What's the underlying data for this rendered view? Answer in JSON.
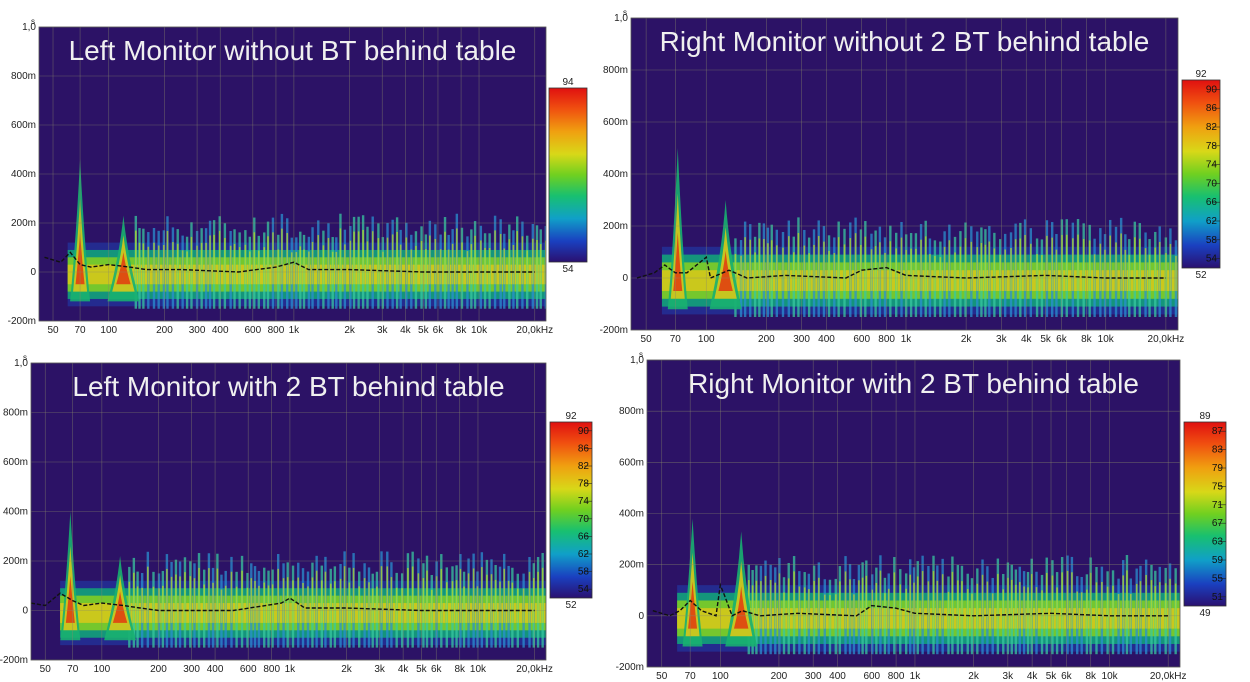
{
  "chart_data": [
    {
      "type": "heatmap",
      "title": "Left Monitor without BT behind table",
      "ylabel": "s",
      "xlabel": "",
      "x_scale": "log",
      "xlim": [
        42,
        23000
      ],
      "ylim": [
        -0.2,
        1.0
      ],
      "x_ticks": [
        {
          "value": 50,
          "label": "50"
        },
        {
          "value": 70,
          "label": "70"
        },
        {
          "value": 100,
          "label": "100"
        },
        {
          "value": 200,
          "label": "200"
        },
        {
          "value": 300,
          "label": "300"
        },
        {
          "value": 400,
          "label": "400"
        },
        {
          "value": 600,
          "label": "600"
        },
        {
          "value": 800,
          "label": "800"
        },
        {
          "value": 1000,
          "label": "1k"
        },
        {
          "value": 2000,
          "label": "2k"
        },
        {
          "value": 3000,
          "label": "3k"
        },
        {
          "value": 4000,
          "label": "4k"
        },
        {
          "value": 5000,
          "label": "5k"
        },
        {
          "value": 6000,
          "label": "6k"
        },
        {
          "value": 8000,
          "label": "8k"
        },
        {
          "value": 10000,
          "label": "10k"
        },
        {
          "value": 20000,
          "label": "20,0kHz"
        }
      ],
      "y_ticks": [
        {
          "value": 1.0,
          "label": "1,0"
        },
        {
          "value": 0.8,
          "label": "800m"
        },
        {
          "value": 0.6,
          "label": "600m"
        },
        {
          "value": 0.4,
          "label": "400m"
        },
        {
          "value": 0.2,
          "label": "200m"
        },
        {
          "value": 0.0,
          "label": "0"
        },
        {
          "value": -0.2,
          "label": "-200m"
        }
      ],
      "color_scale": {
        "top_label": "94",
        "labels": [],
        "bottom_label": "54"
      },
      "decay_ridge": {
        "x": [
          45,
          55,
          62,
          70,
          80,
          100,
          130,
          160,
          250,
          500,
          800,
          1000,
          1200,
          2000,
          5000,
          10000,
          20000
        ],
        "y": [
          0.06,
          0.04,
          0.08,
          0.03,
          0.02,
          0.03,
          0.02,
          0.01,
          0.01,
          0.0,
          0.02,
          0.04,
          0.01,
          0.01,
          0.0,
          0.0,
          0.0
        ]
      },
      "peaks": [
        {
          "x": 70,
          "y": 0.46
        },
        {
          "x": 120,
          "y": 0.23
        }
      ]
    },
    {
      "type": "heatmap",
      "title": "Right Monitor without 2 BT behind table",
      "ylabel": "s",
      "xlabel": "",
      "x_scale": "log",
      "xlim": [
        42,
        23000
      ],
      "ylim": [
        -0.2,
        1.0
      ],
      "x_ticks": [
        {
          "value": 50,
          "label": "50"
        },
        {
          "value": 70,
          "label": "70"
        },
        {
          "value": 100,
          "label": "100"
        },
        {
          "value": 200,
          "label": "200"
        },
        {
          "value": 300,
          "label": "300"
        },
        {
          "value": 400,
          "label": "400"
        },
        {
          "value": 600,
          "label": "600"
        },
        {
          "value": 800,
          "label": "800"
        },
        {
          "value": 1000,
          "label": "1k"
        },
        {
          "value": 2000,
          "label": "2k"
        },
        {
          "value": 3000,
          "label": "3k"
        },
        {
          "value": 4000,
          "label": "4k"
        },
        {
          "value": 5000,
          "label": "5k"
        },
        {
          "value": 6000,
          "label": "6k"
        },
        {
          "value": 8000,
          "label": "8k"
        },
        {
          "value": 10000,
          "label": "10k"
        },
        {
          "value": 20000,
          "label": "20,0kHz"
        }
      ],
      "y_ticks": [
        {
          "value": 1.0,
          "label": "1,0"
        },
        {
          "value": 0.8,
          "label": "800m"
        },
        {
          "value": 0.6,
          "label": "600m"
        },
        {
          "value": 0.4,
          "label": "400m"
        },
        {
          "value": 0.2,
          "label": "200m"
        },
        {
          "value": 0.0,
          "label": "0"
        },
        {
          "value": -0.2,
          "label": "-200m"
        }
      ],
      "color_scale": {
        "top_label": "92",
        "labels": [
          "90",
          "86",
          "82",
          "78",
          "74",
          "70",
          "66",
          "62",
          "58",
          "54"
        ],
        "bottom_label": "52"
      },
      "decay_ridge": {
        "x": [
          45,
          55,
          62,
          70,
          80,
          100,
          105,
          130,
          160,
          250,
          500,
          600,
          800,
          1000,
          2000,
          5000,
          10000,
          20000
        ],
        "y": [
          0.0,
          0.02,
          0.05,
          0.02,
          0.02,
          0.08,
          0.0,
          0.03,
          0.0,
          0.01,
          0.0,
          0.03,
          0.04,
          0.01,
          0.0,
          0.01,
          0.0,
          0.0
        ]
      },
      "peaks": [
        {
          "x": 72,
          "y": 0.5
        },
        {
          "x": 125,
          "y": 0.3
        }
      ]
    },
    {
      "type": "heatmap",
      "title": "Left Monitor with 2 BT behind table",
      "ylabel": "s",
      "xlabel": "",
      "x_scale": "log",
      "xlim": [
        42,
        23000
      ],
      "ylim": [
        -0.2,
        1.0
      ],
      "x_ticks": [
        {
          "value": 50,
          "label": "50"
        },
        {
          "value": 70,
          "label": "70"
        },
        {
          "value": 100,
          "label": "100"
        },
        {
          "value": 200,
          "label": "200"
        },
        {
          "value": 300,
          "label": "300"
        },
        {
          "value": 400,
          "label": "400"
        },
        {
          "value": 600,
          "label": "600"
        },
        {
          "value": 800,
          "label": "800"
        },
        {
          "value": 1000,
          "label": "1k"
        },
        {
          "value": 2000,
          "label": "2k"
        },
        {
          "value": 3000,
          "label": "3k"
        },
        {
          "value": 4000,
          "label": "4k"
        },
        {
          "value": 5000,
          "label": "5k"
        },
        {
          "value": 6000,
          "label": "6k"
        },
        {
          "value": 8000,
          "label": "8k"
        },
        {
          "value": 10000,
          "label": "10k"
        },
        {
          "value": 20000,
          "label": "20,0kHz"
        }
      ],
      "y_ticks": [
        {
          "value": 1.0,
          "label": "1,0"
        },
        {
          "value": 0.8,
          "label": "800m"
        },
        {
          "value": 0.6,
          "label": "600m"
        },
        {
          "value": 0.4,
          "label": "400m"
        },
        {
          "value": 0.2,
          "label": "200m"
        },
        {
          "value": 0.0,
          "label": "0"
        },
        {
          "value": -0.2,
          "label": "-200m"
        }
      ],
      "color_scale": {
        "top_label": "92",
        "labels": [
          "90",
          "86",
          "82",
          "78",
          "74",
          "70",
          "66",
          "62",
          "58",
          "54"
        ],
        "bottom_label": "52"
      },
      "decay_ridge": {
        "x": [
          42,
          50,
          60,
          70,
          80,
          100,
          130,
          160,
          200,
          500,
          900,
          1000,
          1200,
          2000,
          5000,
          10000,
          20000
        ],
        "y": [
          0.03,
          0.02,
          0.07,
          0.04,
          0.02,
          0.03,
          0.02,
          0.01,
          0.0,
          0.0,
          0.03,
          0.05,
          0.01,
          0.01,
          0.0,
          0.0,
          0.0
        ]
      },
      "peaks": [
        {
          "x": 68,
          "y": 0.4
        },
        {
          "x": 125,
          "y": 0.22
        }
      ]
    },
    {
      "type": "heatmap",
      "title": "Right Monitor with 2 BT behind table",
      "ylabel": "s",
      "xlabel": "",
      "x_scale": "log",
      "xlim": [
        42,
        23000
      ],
      "ylim": [
        -0.2,
        1.0
      ],
      "x_ticks": [
        {
          "value": 50,
          "label": "50"
        },
        {
          "value": 70,
          "label": "70"
        },
        {
          "value": 100,
          "label": "100"
        },
        {
          "value": 200,
          "label": "200"
        },
        {
          "value": 300,
          "label": "300"
        },
        {
          "value": 400,
          "label": "400"
        },
        {
          "value": 600,
          "label": "600"
        },
        {
          "value": 800,
          "label": "800"
        },
        {
          "value": 1000,
          "label": "1k"
        },
        {
          "value": 2000,
          "label": "2k"
        },
        {
          "value": 3000,
          "label": "3k"
        },
        {
          "value": 4000,
          "label": "4k"
        },
        {
          "value": 5000,
          "label": "5k"
        },
        {
          "value": 6000,
          "label": "6k"
        },
        {
          "value": 8000,
          "label": "8k"
        },
        {
          "value": 10000,
          "label": "10k"
        },
        {
          "value": 20000,
          "label": "20,0kHz"
        }
      ],
      "y_ticks": [
        {
          "value": 1.0,
          "label": "1,0"
        },
        {
          "value": 0.8,
          "label": "800m"
        },
        {
          "value": 0.6,
          "label": "600m"
        },
        {
          "value": 0.4,
          "label": "400m"
        },
        {
          "value": 0.2,
          "label": "200m"
        },
        {
          "value": 0.0,
          "label": "0"
        },
        {
          "value": -0.2,
          "label": "-200m"
        }
      ],
      "color_scale": {
        "top_label": "89",
        "labels": [
          "87",
          "83",
          "79",
          "75",
          "71",
          "67",
          "63",
          "59",
          "55",
          "51"
        ],
        "bottom_label": "49"
      },
      "decay_ridge": {
        "x": [
          45,
          55,
          62,
          70,
          80,
          95,
          100,
          105,
          115,
          130,
          160,
          250,
          500,
          600,
          800,
          1000,
          2000,
          5000,
          10000,
          20000
        ],
        "y": [
          0.02,
          0.0,
          0.02,
          0.06,
          0.02,
          0.0,
          0.12,
          0.08,
          0.0,
          0.02,
          0.0,
          0.01,
          0.0,
          0.04,
          0.03,
          0.01,
          0.0,
          0.01,
          0.0,
          0.0
        ]
      },
      "peaks": [
        {
          "x": 72,
          "y": 0.38
        },
        {
          "x": 128,
          "y": 0.33
        }
      ]
    }
  ]
}
